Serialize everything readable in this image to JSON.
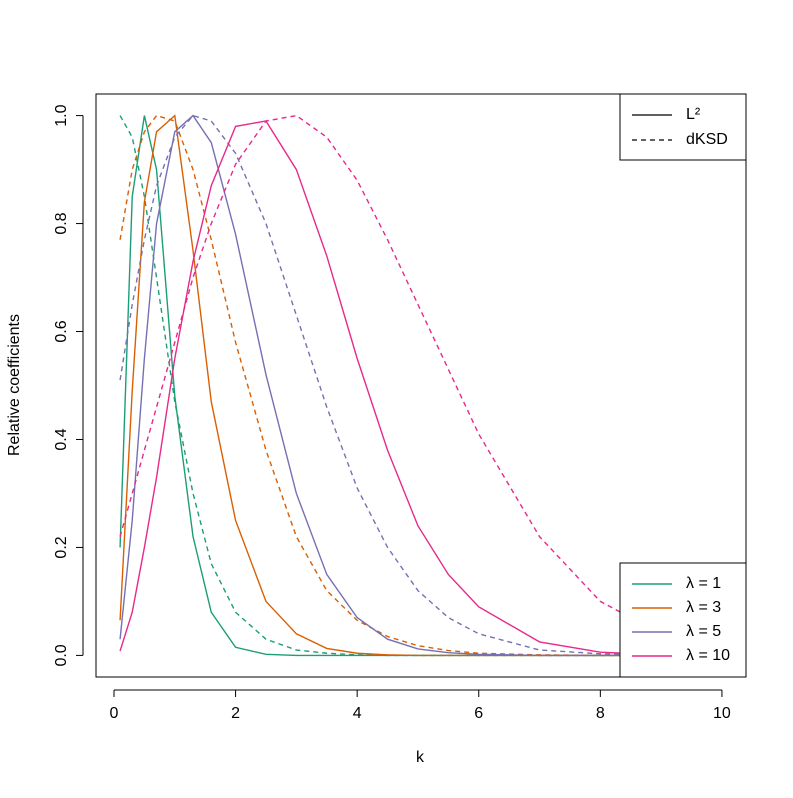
{
  "chart_data": {
    "type": "line",
    "x_label": "k",
    "y_label": "Relative coefficients",
    "x": [
      0.1,
      0.3,
      0.5,
      0.7,
      1,
      1.3,
      1.6,
      2,
      2.5,
      3,
      3.5,
      4,
      4.5,
      5,
      5.5,
      6,
      7,
      8,
      9,
      10
    ],
    "series": [
      {
        "name": "λ = 1",
        "color": "#1b9e77",
        "values": [
          0.2,
          0.85,
          1.0,
          0.9,
          0.48,
          0.22,
          0.08,
          0.015,
          0.002,
          0,
          0,
          0,
          0,
          0,
          0,
          0,
          0,
          0,
          0,
          0
        ],
        "values_dksd": [
          1.0,
          0.96,
          0.85,
          0.7,
          0.47,
          0.3,
          0.17,
          0.08,
          0.03,
          0.01,
          0.004,
          0.001,
          0,
          0,
          0,
          0,
          0,
          0,
          0,
          0
        ]
      },
      {
        "name": "λ = 3",
        "color": "#d95f02",
        "values": [
          0.065,
          0.49,
          0.84,
          0.97,
          1.0,
          0.75,
          0.47,
          0.25,
          0.1,
          0.04,
          0.013,
          0.004,
          0.001,
          0,
          0,
          0,
          0,
          0,
          0,
          0
        ],
        "values_dksd": [
          0.77,
          0.9,
          0.97,
          1.0,
          0.99,
          0.9,
          0.77,
          0.58,
          0.38,
          0.22,
          0.12,
          0.065,
          0.035,
          0.018,
          0.009,
          0.004,
          0.001,
          0,
          0,
          0
        ]
      },
      {
        "name": "λ = 5",
        "color": "#7570b3",
        "values": [
          0.03,
          0.25,
          0.55,
          0.8,
          0.97,
          1.0,
          0.95,
          0.78,
          0.52,
          0.3,
          0.15,
          0.07,
          0.03,
          0.012,
          0.005,
          0.002,
          0,
          0,
          0,
          0
        ],
        "values_dksd": [
          0.51,
          0.65,
          0.77,
          0.87,
          0.96,
          1.0,
          0.99,
          0.93,
          0.8,
          0.63,
          0.46,
          0.31,
          0.2,
          0.12,
          0.07,
          0.04,
          0.01,
          0.003,
          0.001,
          0
        ]
      },
      {
        "name": "λ = 10",
        "color": "#e7298a",
        "values": [
          0.008,
          0.08,
          0.2,
          0.33,
          0.55,
          0.73,
          0.87,
          0.98,
          0.99,
          0.9,
          0.74,
          0.55,
          0.38,
          0.24,
          0.15,
          0.09,
          0.025,
          0.006,
          0.001,
          0
        ],
        "values_dksd": [
          0.22,
          0.3,
          0.38,
          0.46,
          0.58,
          0.7,
          0.8,
          0.91,
          0.99,
          1.0,
          0.96,
          0.88,
          0.77,
          0.65,
          0.53,
          0.41,
          0.22,
          0.1,
          0.04,
          0.014
        ]
      }
    ],
    "linetype_legend": [
      {
        "label": "L²",
        "dashed": false
      },
      {
        "label": "dKSD",
        "dashed": true
      }
    ],
    "xlim": [
      -0.296,
      10.396
    ],
    "ylim": [
      -0.04,
      1.04
    ],
    "xticks": [
      0,
      2,
      4,
      6,
      8,
      10
    ],
    "yticks": [
      {
        "value": 0,
        "label": "0.0"
      },
      {
        "value": 0.2,
        "label": "0.2"
      },
      {
        "value": 0.4,
        "label": "0.4"
      },
      {
        "value": 0.6,
        "label": "0.6"
      },
      {
        "value": 0.8,
        "label": "0.8"
      },
      {
        "value": 1,
        "label": "1.0"
      }
    ]
  }
}
